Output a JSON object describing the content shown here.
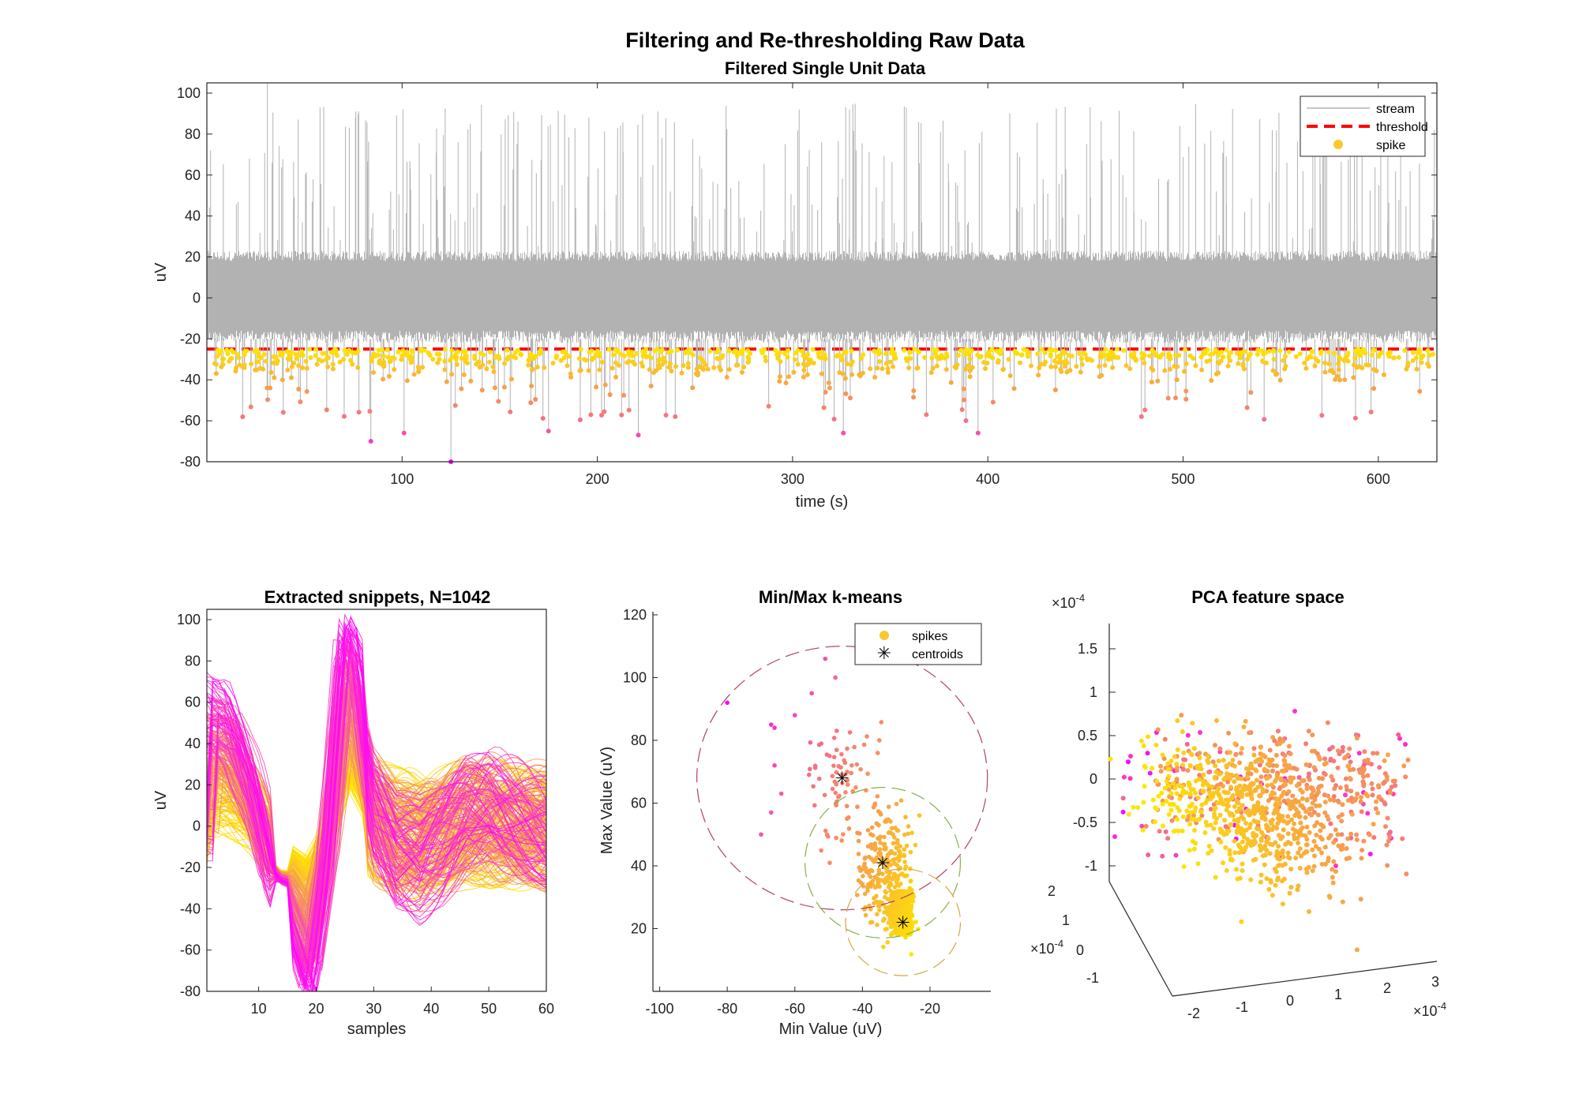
{
  "figure": {
    "suptitle": "Filtering and Re-thresholding Raw Data"
  },
  "colors": {
    "stream": "#b2b2b2",
    "threshold": "#ff0000",
    "spike_yellow": "#ffe600",
    "spike_orange": "#f7a04a",
    "spike_pink": "#f46a8e",
    "spike_magenta": "#ff00ff",
    "axes": "#262626"
  },
  "chart_data": [
    {
      "type": "line",
      "title": "Filtered Single Unit Data",
      "xlabel": "time (s)",
      "ylabel": "uV",
      "xlim": [
        0,
        630
      ],
      "ylim": [
        -80,
        105
      ],
      "xticks": [
        "100",
        "200",
        "300",
        "400",
        "500",
        "600"
      ],
      "yticks": [
        "-80",
        "-60",
        "-40",
        "-20",
        "0",
        "20",
        "40",
        "60",
        "80",
        "100"
      ],
      "threshold": -25,
      "noise_band": [
        -16,
        18
      ],
      "legend": {
        "position": "top-right",
        "entries": [
          "stream",
          "threshold",
          "spike"
        ]
      },
      "series": [
        {
          "name": "stream",
          "description_values": {
            "positive_spike_peaks_range": [
              30,
              105
            ]
          }
        },
        {
          "name": "threshold",
          "values": [
            -25,
            -25
          ]
        },
        {
          "name": "spike",
          "min_values_range": [
            -80,
            -25
          ],
          "count": 1042
        }
      ],
      "labeled_outliers": [
        {
          "x": 84,
          "y": -70
        },
        {
          "x": 101,
          "y": -66
        },
        {
          "x": 125,
          "y": -80
        },
        {
          "x": 175,
          "y": -65
        },
        {
          "x": 221,
          "y": -67
        },
        {
          "x": 326,
          "y": -66
        },
        {
          "x": 395,
          "y": -66
        }
      ]
    },
    {
      "type": "line",
      "title": "Extracted snippets, N=1042",
      "xlabel": "samples",
      "ylabel": "uV",
      "xlim": [
        1,
        60
      ],
      "ylim": [
        -80,
        105
      ],
      "xticks": [
        "10",
        "20",
        "30",
        "40",
        "50",
        "60"
      ],
      "yticks": [
        "-80",
        "-60",
        "-40",
        "-20",
        "0",
        "20",
        "40",
        "60",
        "80",
        "100"
      ],
      "template_waveform": {
        "x": [
          1,
          5,
          9,
          12,
          14,
          16,
          19,
          22,
          25,
          27,
          30,
          34,
          38,
          42,
          46,
          50,
          55,
          60
        ],
        "y": [
          45,
          40,
          15,
          -15,
          -24,
          -35,
          -52,
          -10,
          62,
          55,
          10,
          -15,
          -20,
          -10,
          5,
          10,
          5,
          0
        ]
      },
      "n_snippets": 1042
    },
    {
      "type": "scatter",
      "title": "Min/Max k-means",
      "xlabel": "Min Value (uV)",
      "ylabel": "Max Value (uV)",
      "xlim": [
        -102,
        -2
      ],
      "ylim": [
        0,
        121
      ],
      "xticks": [
        "-100",
        "-80",
        "-60",
        "-40",
        "-20"
      ],
      "yticks": [
        "20",
        "40",
        "60",
        "80",
        "100",
        "120"
      ],
      "legend": {
        "position": "top-right",
        "entries": [
          "spikes",
          "centroids"
        ]
      },
      "centroids": [
        {
          "x": -46,
          "y": 68
        },
        {
          "x": -34,
          "y": 41
        },
        {
          "x": -28,
          "y": 22
        }
      ],
      "clusters": [
        {
          "center": [
            -46,
            68
          ],
          "radius_x": 43,
          "radius_y": 42,
          "color": "#b0406a"
        },
        {
          "center": [
            -34,
            41
          ],
          "radius_x": 23,
          "radius_y": 24,
          "color": "#86b04a"
        },
        {
          "center": [
            -28,
            22
          ],
          "radius_x": 17,
          "radius_y": 17,
          "color": "#d9a441"
        }
      ],
      "n_points": 1042
    },
    {
      "type": "scatter",
      "title": "PCA feature space",
      "projection": "3d",
      "z_exponent_label": "×10^-4",
      "y_exponent_label": "×10^-4",
      "x_exponent_label": "×10^-4",
      "zticks": [
        "-1",
        "-0.5",
        "0",
        "0.5",
        "1",
        "1.5"
      ],
      "yticks": [
        "-1",
        "0",
        "1",
        "2"
      ],
      "xticks": [
        "-2",
        "-1",
        "0",
        "1",
        "2",
        "3"
      ],
      "n_points": 1042
    }
  ]
}
